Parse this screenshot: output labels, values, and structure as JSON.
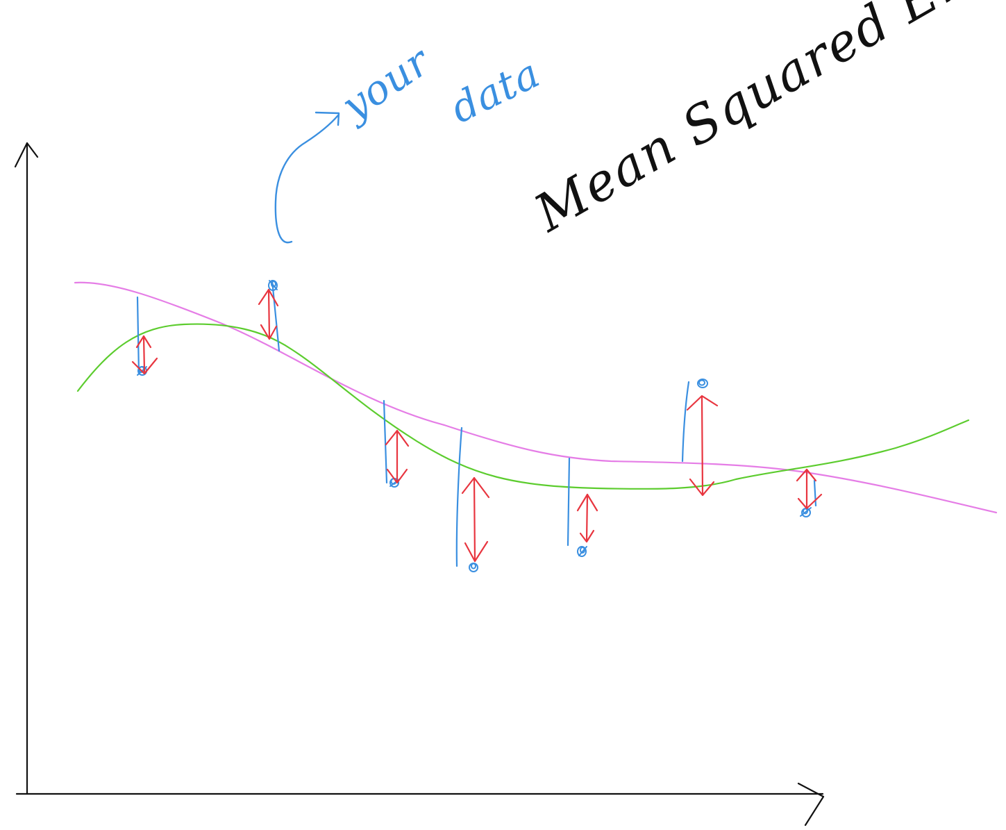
{
  "title": "Mean Squared Error",
  "annotation": {
    "line1": "your",
    "line2": "data"
  },
  "colors": {
    "axes": "#111111",
    "annotation": "#3a8fe0",
    "data_points": "#3a8fe0",
    "error_arrows": "#e8353f",
    "fit_curve_green": "#5ccc2e",
    "fit_curve_pink": "#e57de6"
  },
  "icons": {
    "axis_arrows": "arrow-head-icon",
    "annotation_arrow": "curved-arrow-icon"
  }
}
